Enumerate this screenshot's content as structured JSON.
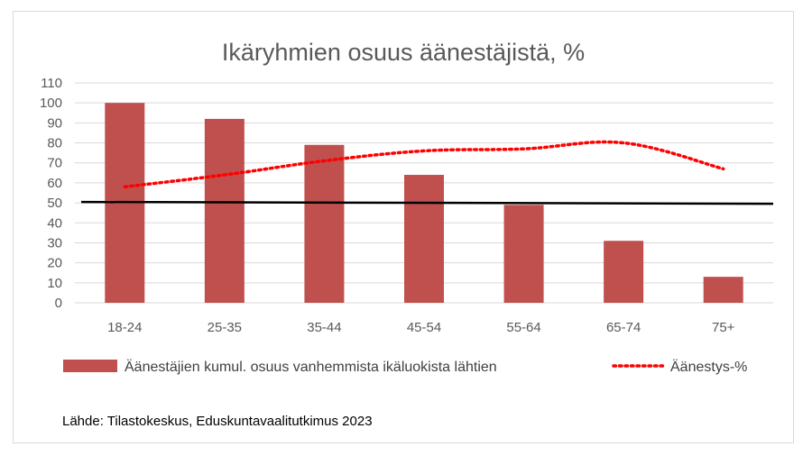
{
  "chart_data": {
    "type": "bar",
    "title": "Ikäryhmien osuus äänestäjistä, %",
    "categories": [
      "18-24",
      "25-35",
      "35-44",
      "45-54",
      "55-64",
      "65-74",
      "75+"
    ],
    "y_ticks": [
      "0",
      "10",
      "20",
      "30",
      "40",
      "50",
      "60",
      "70",
      "80",
      "90",
      "100",
      "110"
    ],
    "ylim": [
      0,
      110
    ],
    "grid": true,
    "legend_position": "bottom",
    "series": [
      {
        "name": "Äänestäjien kumul. osuus vanhemmista ikäluokista lähtien",
        "type": "bar",
        "color": "#c0504d",
        "values": [
          100,
          92,
          79,
          64,
          49,
          31,
          13
        ]
      },
      {
        "name": "Äänestys-%",
        "type": "line",
        "style": "dotted",
        "color": "#ff0000",
        "values": [
          58,
          64,
          71,
          76,
          77,
          80,
          67
        ]
      }
    ],
    "reference_line": {
      "value": 50,
      "color": "#000000"
    }
  },
  "source_note": "Lähde: Tilastokeskus, Eduskuntavaalitutkimus 2023"
}
